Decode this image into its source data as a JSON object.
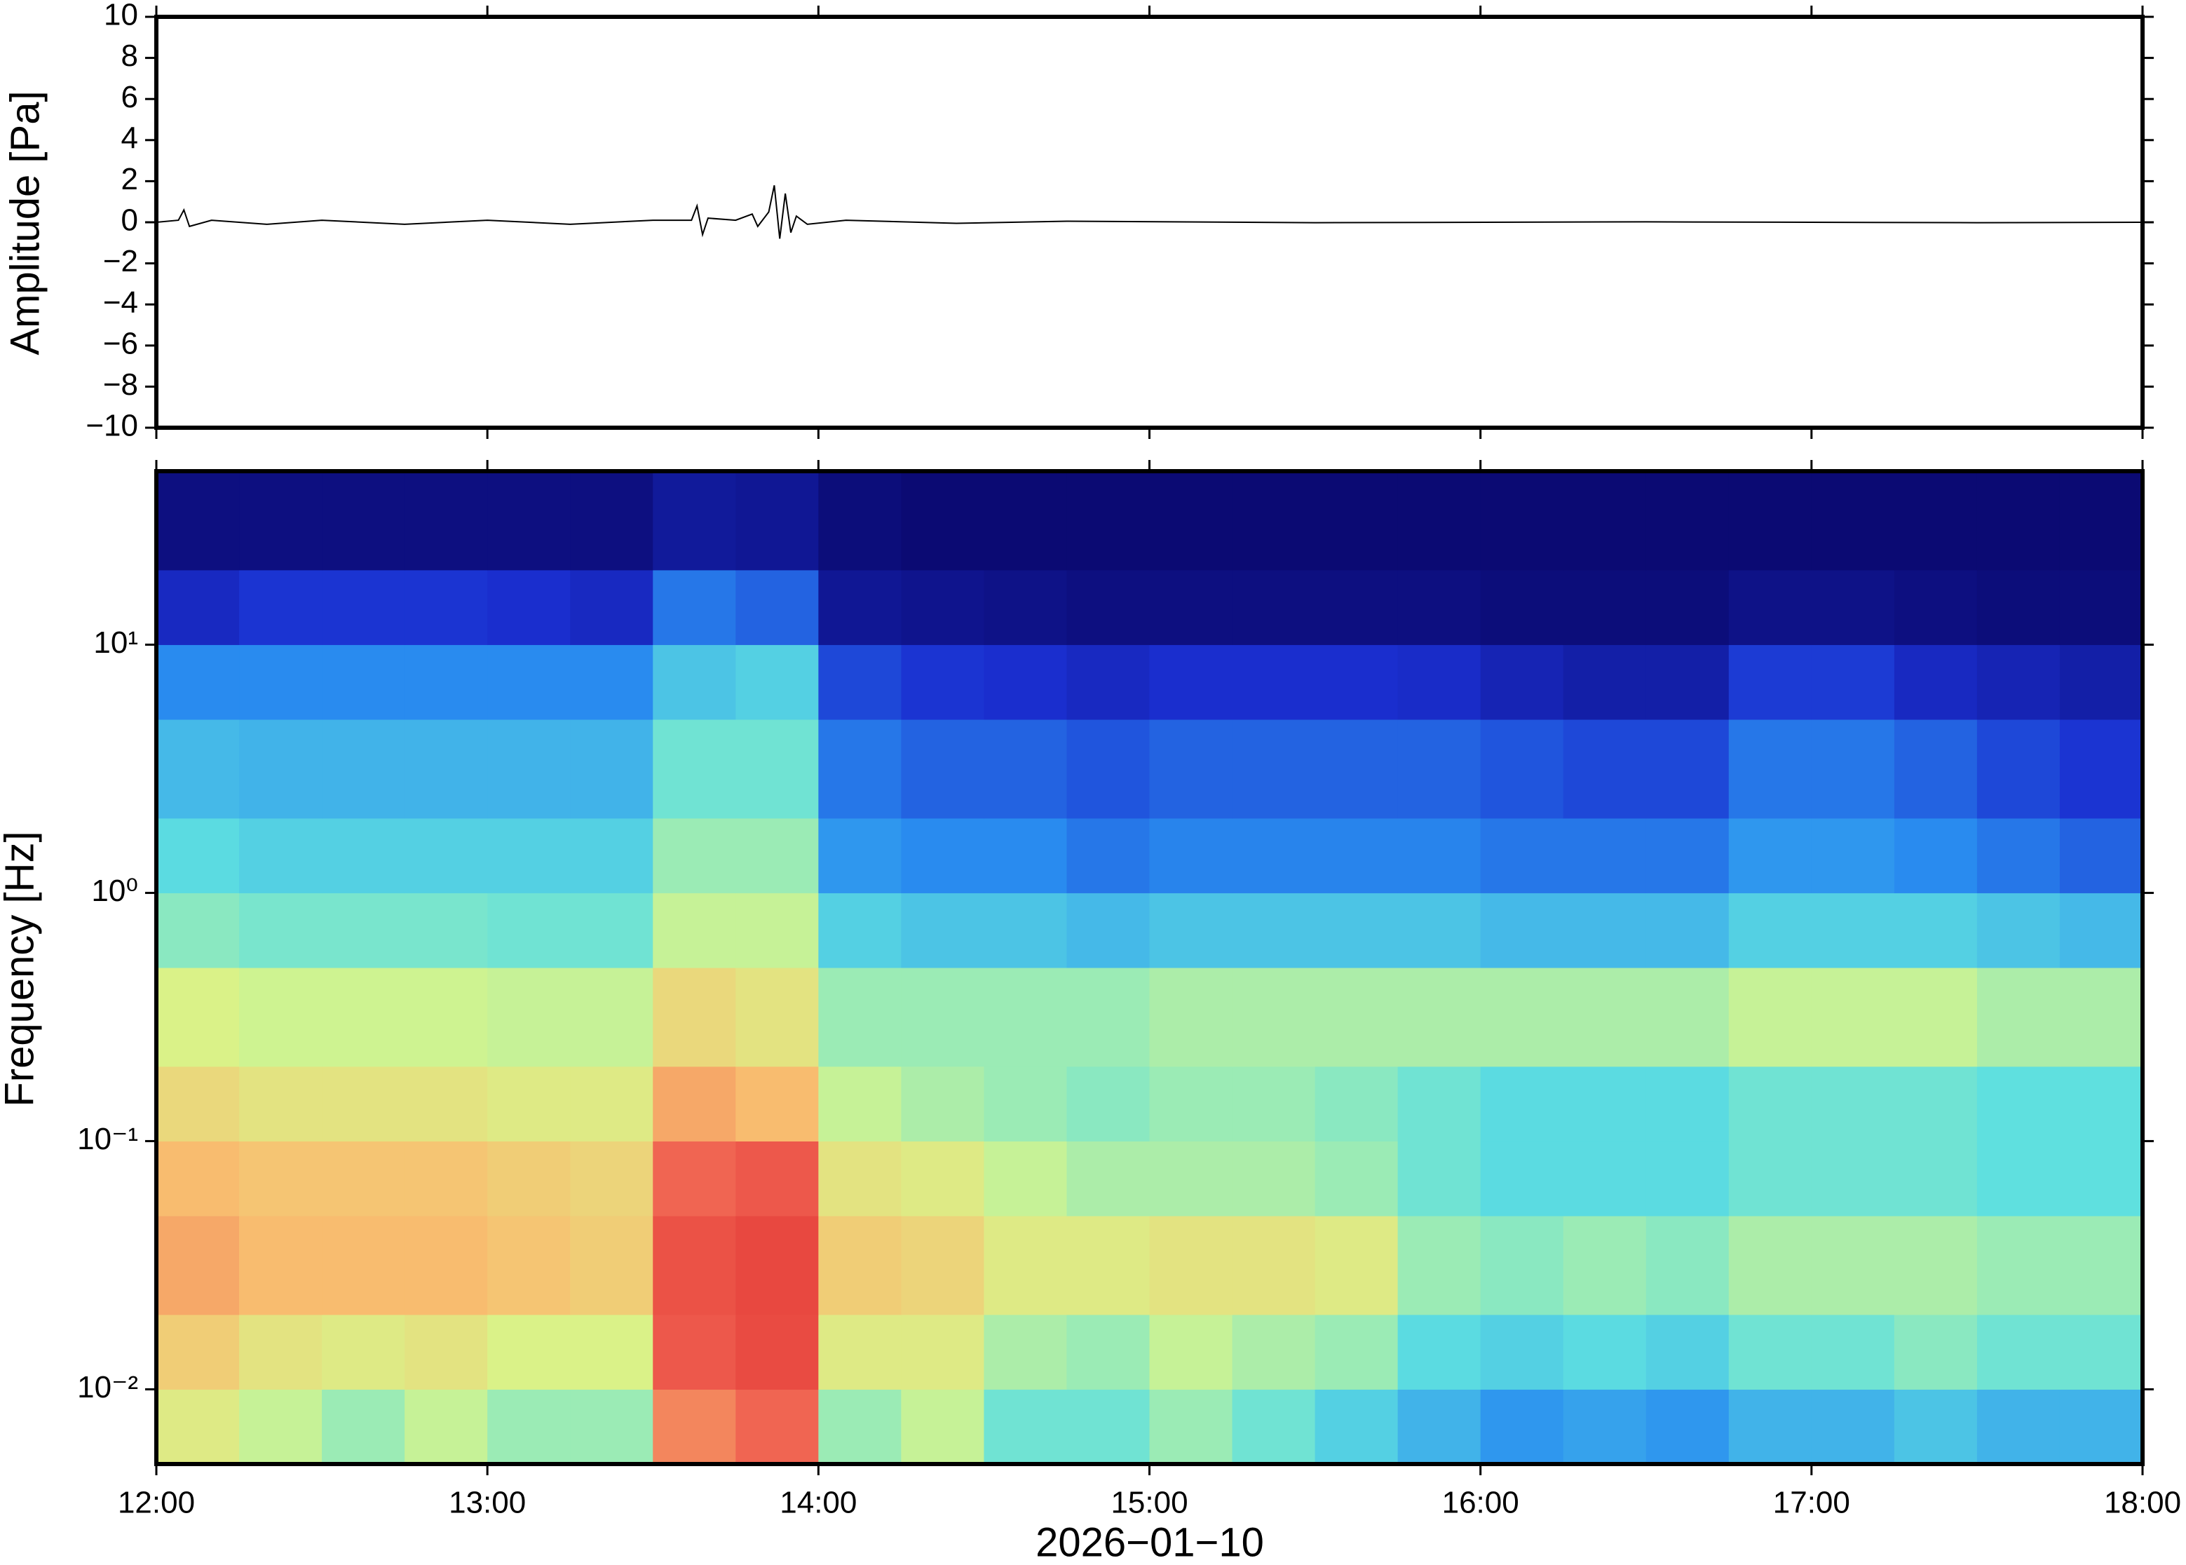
{
  "chart_data": [
    {
      "type": "line",
      "ylabel": "Amplitude [Pa]",
      "x": [
        "12:00",
        "12:04",
        "12:05",
        "12:06",
        "12:10",
        "12:20",
        "12:30",
        "12:45",
        "13:00",
        "13:15",
        "13:30",
        "13:37",
        "13:38",
        "13:39",
        "13:40",
        "13:45",
        "13:48",
        "13:49",
        "13:51",
        "13:52",
        "13:53",
        "13:54",
        "13:55",
        "13:56",
        "13:58",
        "14:05",
        "14:25",
        "14:45",
        "15:30",
        "16:30",
        "17:30",
        "18:00"
      ],
      "values": [
        0,
        0.1,
        0.6,
        -0.2,
        0.1,
        -0.1,
        0.1,
        -0.1,
        0.1,
        -0.1,
        0.1,
        0.1,
        0.8,
        -0.6,
        0.2,
        0.1,
        0.4,
        -0.2,
        0.5,
        1.8,
        -0.8,
        1.4,
        -0.5,
        0.3,
        -0.1,
        0.1,
        -0.05,
        0.05,
        -0.02,
        0.02,
        -0.02,
        0
      ],
      "color": "#000000",
      "xlim": [
        "12:00",
        "18:00"
      ],
      "xticks": [
        "12:00",
        "13:00",
        "14:00",
        "15:00",
        "16:00",
        "17:00",
        "18:00"
      ],
      "ylim": [
        -10,
        10
      ],
      "yticks": [
        {
          "value": -10,
          "label": "−10"
        },
        {
          "value": -8,
          "label": "−8"
        },
        {
          "value": -6,
          "label": "−6"
        },
        {
          "value": -4,
          "label": "−4"
        },
        {
          "value": -2,
          "label": "−2"
        },
        0,
        2,
        4,
        6,
        8,
        10
      ]
    },
    {
      "type": "heatmap",
      "ylabel": "Frequency [Hz]",
      "xlabel": "2026−01−10",
      "x": [
        "12:00",
        "12:15",
        "12:30",
        "12:45",
        "13:00",
        "13:15",
        "13:30",
        "13:45",
        "14:00",
        "14:15",
        "14:30",
        "14:45",
        "15:00",
        "15:15",
        "15:30",
        "15:45",
        "16:00",
        "16:15",
        "16:30",
        "16:45",
        "17:00",
        "17:15",
        "17:30",
        "17:45"
      ],
      "xlim": [
        "12:00",
        "18:00"
      ],
      "xticks": [
        "12:00",
        "13:00",
        "14:00",
        "15:00",
        "16:00",
        "17:00",
        "18:00"
      ],
      "ybins": [
        0.005,
        0.01,
        0.02,
        0.05,
        0.1,
        0.2,
        0.5,
        1,
        2,
        5,
        10,
        20,
        50
      ],
      "ylim": [
        0.005,
        50
      ],
      "log_y": true,
      "yticks": [
        {
          "value": 0.01,
          "label": "10⁻²"
        },
        {
          "value": 0.1,
          "label": "10⁻¹"
        },
        {
          "value": 1,
          "label": "10⁰"
        },
        {
          "value": 10,
          "label": "10¹"
        }
      ],
      "zlim": [
        0,
        1
      ],
      "colormap": [
        "#0b0a73",
        "#1a2fd0",
        "#2a8ff0",
        "#5ee0e0",
        "#d8f58a",
        "#f8c070",
        "#f06050",
        "#e03030"
      ],
      "values": [
        [
          0.6,
          0.55,
          0.5,
          0.55,
          0.5,
          0.5,
          0.8,
          0.85,
          0.5,
          0.55,
          0.45,
          0.45,
          0.5,
          0.45,
          0.4,
          0.35,
          0.3,
          0.32,
          0.3,
          0.35,
          0.35,
          0.38,
          0.35,
          0.35
        ],
        [
          0.68,
          0.62,
          0.6,
          0.62,
          0.58,
          0.58,
          0.88,
          0.92,
          0.6,
          0.6,
          0.52,
          0.5,
          0.55,
          0.52,
          0.5,
          0.42,
          0.4,
          0.42,
          0.4,
          0.45,
          0.45,
          0.48,
          0.45,
          0.45
        ],
        [
          0.75,
          0.72,
          0.72,
          0.72,
          0.7,
          0.68,
          0.9,
          0.93,
          0.68,
          0.66,
          0.6,
          0.6,
          0.62,
          0.62,
          0.6,
          0.5,
          0.48,
          0.5,
          0.48,
          0.52,
          0.52,
          0.52,
          0.5,
          0.5
        ],
        [
          0.72,
          0.7,
          0.7,
          0.7,
          0.68,
          0.66,
          0.85,
          0.88,
          0.62,
          0.6,
          0.55,
          0.52,
          0.52,
          0.52,
          0.5,
          0.45,
          0.42,
          0.42,
          0.42,
          0.45,
          0.45,
          0.45,
          0.43,
          0.43
        ],
        [
          0.65,
          0.62,
          0.62,
          0.62,
          0.6,
          0.6,
          0.75,
          0.72,
          0.55,
          0.52,
          0.5,
          0.48,
          0.5,
          0.5,
          0.48,
          0.45,
          0.42,
          0.42,
          0.42,
          0.45,
          0.45,
          0.45,
          0.43,
          0.43
        ],
        [
          0.58,
          0.56,
          0.56,
          0.56,
          0.55,
          0.55,
          0.65,
          0.62,
          0.5,
          0.5,
          0.5,
          0.5,
          0.52,
          0.52,
          0.52,
          0.52,
          0.52,
          0.52,
          0.52,
          0.55,
          0.55,
          0.55,
          0.52,
          0.52
        ],
        [
          0.48,
          0.46,
          0.46,
          0.46,
          0.45,
          0.45,
          0.55,
          0.55,
          0.4,
          0.38,
          0.38,
          0.36,
          0.38,
          0.38,
          0.38,
          0.38,
          0.36,
          0.36,
          0.36,
          0.4,
          0.4,
          0.4,
          0.38,
          0.36
        ],
        [
          0.42,
          0.4,
          0.4,
          0.4,
          0.4,
          0.4,
          0.5,
          0.5,
          0.3,
          0.28,
          0.28,
          0.25,
          0.27,
          0.27,
          0.27,
          0.27,
          0.25,
          0.25,
          0.25,
          0.3,
          0.3,
          0.28,
          0.25,
          0.22
        ],
        [
          0.36,
          0.35,
          0.35,
          0.35,
          0.35,
          0.35,
          0.45,
          0.45,
          0.25,
          0.22,
          0.22,
          0.2,
          0.22,
          0.22,
          0.22,
          0.22,
          0.2,
          0.18,
          0.18,
          0.25,
          0.25,
          0.22,
          0.18,
          0.15
        ],
        [
          0.28,
          0.28,
          0.28,
          0.28,
          0.28,
          0.28,
          0.38,
          0.4,
          0.18,
          0.15,
          0.14,
          0.12,
          0.14,
          0.14,
          0.14,
          0.13,
          0.1,
          0.08,
          0.08,
          0.16,
          0.16,
          0.12,
          0.1,
          0.08
        ],
        [
          0.12,
          0.15,
          0.15,
          0.15,
          0.14,
          0.12,
          0.25,
          0.22,
          0.05,
          0.04,
          0.03,
          0.02,
          0.02,
          0.02,
          0.02,
          0.02,
          0.01,
          0.01,
          0.01,
          0.03,
          0.03,
          0.02,
          0.01,
          0.01
        ],
        [
          0.02,
          0.02,
          0.02,
          0.02,
          0.02,
          0.02,
          0.06,
          0.05,
          0.01,
          0,
          0,
          0,
          0,
          0,
          0,
          0,
          0,
          0,
          0,
          0,
          0,
          0,
          0,
          0
        ]
      ]
    }
  ]
}
